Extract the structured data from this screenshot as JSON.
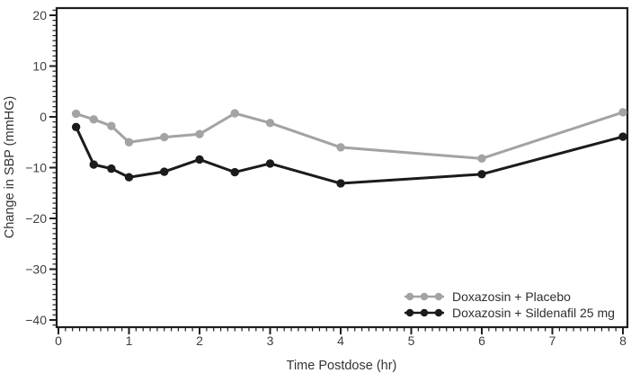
{
  "chart_data": {
    "type": "line",
    "title": "",
    "xlabel": "Time Postdose (hr)",
    "ylabel": "Change in SBP (mmHG)",
    "xlim": [
      0,
      8
    ],
    "ylim": [
      -40,
      20
    ],
    "x_ticks": [
      0,
      1,
      2,
      3,
      4,
      5,
      6,
      7,
      8
    ],
    "y_ticks": [
      20,
      10,
      0,
      -10,
      -20,
      -30,
      -40
    ],
    "x_minor_step": 0.1,
    "y_minor_step": 1,
    "grid": false,
    "legend_position": "inside-lower-right",
    "axis_color": "#1e1e20",
    "text_color": "#3f3f41",
    "series": [
      {
        "name": "Doxazosin + Placebo",
        "color": "#a3a3a3",
        "marker": "circle",
        "x": [
          0.25,
          0.5,
          0.75,
          1,
          1.5,
          2,
          2.5,
          3,
          4,
          6,
          8
        ],
        "y": [
          0.6,
          -0.5,
          -1.8,
          -5.0,
          -4.0,
          -3.4,
          0.7,
          -1.2,
          -6.0,
          -8.2,
          0.9
        ]
      },
      {
        "name": "Doxazosin + Sildenafil 25 mg",
        "color": "#1b1b1d",
        "marker": "circle",
        "x": [
          0.25,
          0.5,
          0.75,
          1,
          1.5,
          2,
          2.5,
          3,
          4,
          6,
          8
        ],
        "y": [
          -2.0,
          -9.4,
          -10.2,
          -11.9,
          -10.8,
          -8.4,
          -10.9,
          -9.2,
          -13.1,
          -11.3,
          -3.9
        ]
      }
    ]
  }
}
